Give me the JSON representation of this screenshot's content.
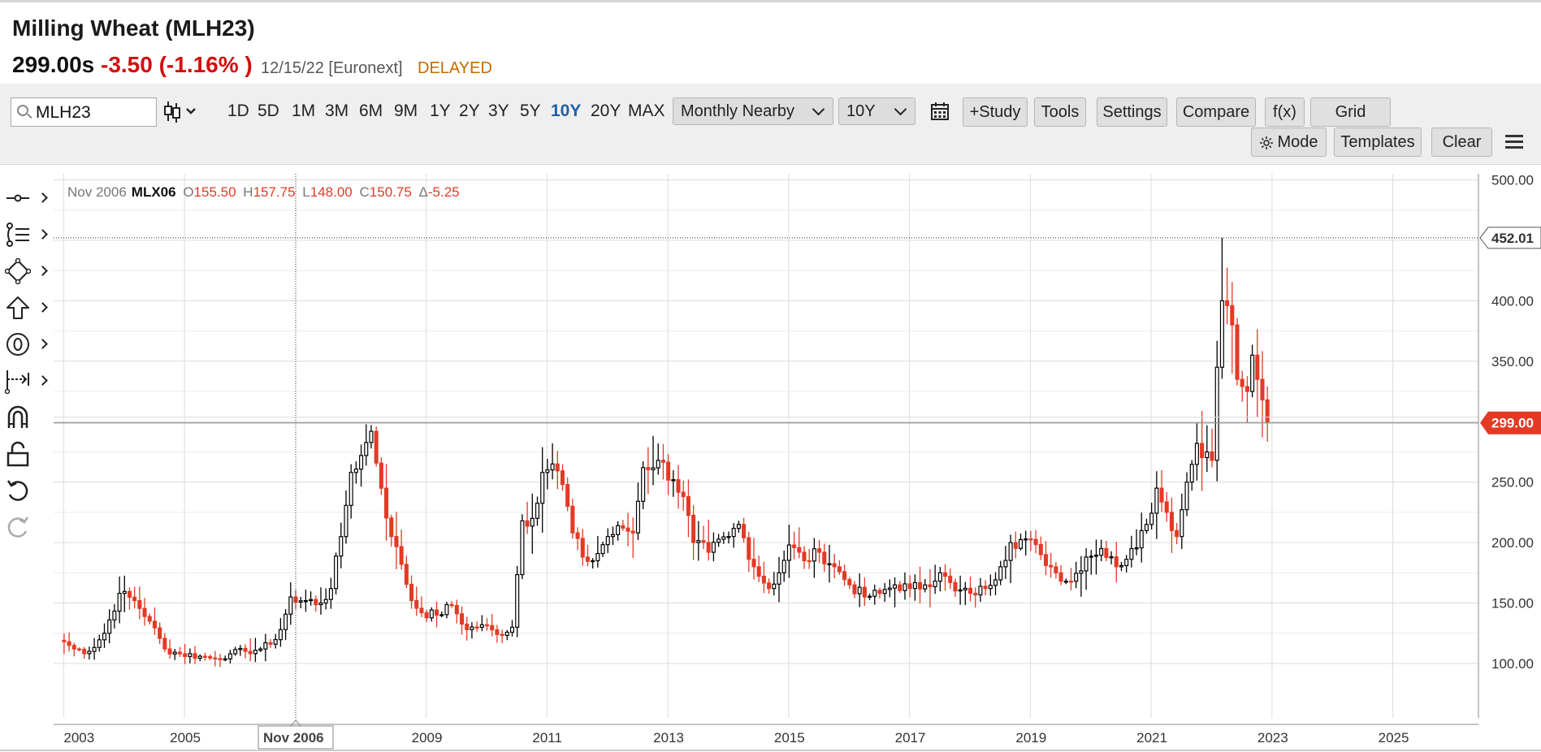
{
  "quote": {
    "title": "Milling Wheat (MLH23)",
    "price": "299.00s",
    "change": "-3.50 (-1.16% )",
    "datetime": "12/15/22 [Euronext]",
    "status": "DELAYED",
    "colors": {
      "down": "#d40e0e",
      "delayed": "#c56a00"
    }
  },
  "toolbar": {
    "search_value": "MLH23",
    "periods": [
      {
        "label": "1D"
      },
      {
        "label": "5D"
      },
      {
        "label": "1M"
      },
      {
        "label": "3M"
      },
      {
        "label": "6M"
      },
      {
        "label": "9M"
      },
      {
        "label": "1Y"
      },
      {
        "label": "2Y"
      },
      {
        "label": "3Y"
      },
      {
        "label": "5Y"
      },
      {
        "label": "10Y"
      },
      {
        "label": "20Y"
      },
      {
        "label": "MAX"
      }
    ],
    "active_period": "10Y",
    "aggregation": "Monthly Nearby",
    "range": "10Y",
    "study": "+Study",
    "tools": "Tools",
    "settings": "Settings",
    "compare": "Compare",
    "fx": "f(x)",
    "grid": "Grid",
    "mode": "Mode",
    "templates": "Templates",
    "clear": "Clear",
    "icons": [
      "search-icon",
      "candlestick-icon",
      "calendar-icon",
      "sun-icon",
      "hamburger-menu-icon"
    ]
  },
  "drawing_tools": [
    "line-tool-icon",
    "fib-tool-icon",
    "shape-tool-icon",
    "arrow-tool-icon",
    "annotation-tool-icon",
    "measure-tool-icon",
    "magnet-icon",
    "lock-icon",
    "undo-icon",
    "redo-icon"
  ],
  "crosshair": {
    "date_label": "Nov 2006",
    "ohlc": {
      "period": "Nov 2006",
      "symbol": "MLX06",
      "o": "155.50",
      "h": "157.75",
      "l": "148.00",
      "c": "150.75",
      "delta": "-5.25"
    },
    "price_label": "452.01",
    "price": 452.01
  },
  "chart_data": {
    "type": "candlestick",
    "interval": "monthly",
    "x_range": [
      "2002-11",
      "2026-06"
    ],
    "ylim": [
      55,
      505
    ],
    "y_ticks": [
      100,
      150,
      200,
      250,
      300,
      350,
      400,
      450,
      500
    ],
    "y_tick_labels": [
      "100.00",
      "150.00",
      "200.00",
      "250.00",
      "",
      "350.00",
      "400.00",
      "",
      "500.00"
    ],
    "x_ticks": [
      "2003",
      "2005",
      "2009",
      "2011",
      "2013",
      "2015",
      "2017",
      "2019",
      "2021",
      "2023",
      "2025"
    ],
    "last_price": 299.0,
    "last_price_label": "299.00",
    "colors": {
      "up": "#000000",
      "down": "#e33a25",
      "last_price_tag": "#e33a25",
      "grid": "#dcdcdc"
    },
    "grid": true,
    "series": [
      {
        "name": "MLH23",
        "monthly_close_anchors": [
          [
            "2003-01",
            118
          ],
          [
            "2003-03",
            112
          ],
          [
            "2003-06",
            110
          ],
          [
            "2003-09",
            125
          ],
          [
            "2003-12",
            158
          ],
          [
            "2004-03",
            152
          ],
          [
            "2004-06",
            135
          ],
          [
            "2004-09",
            112
          ],
          [
            "2004-12",
            108
          ],
          [
            "2005-04",
            106
          ],
          [
            "2005-07",
            104
          ],
          [
            "2005-10",
            108
          ],
          [
            "2006-01",
            110
          ],
          [
            "2006-04",
            112
          ],
          [
            "2006-06",
            116
          ],
          [
            "2006-08",
            128
          ],
          [
            "2006-10",
            155
          ],
          [
            "2006-11",
            150.75
          ],
          [
            "2007-01",
            152
          ],
          [
            "2007-04",
            150
          ],
          [
            "2007-06",
            162
          ],
          [
            "2007-08",
            205
          ],
          [
            "2007-10",
            258
          ],
          [
            "2007-12",
            272
          ],
          [
            "2008-02",
            292
          ],
          [
            "2008-04",
            245
          ],
          [
            "2008-06",
            205
          ],
          [
            "2008-08",
            182
          ],
          [
            "2008-10",
            152
          ],
          [
            "2008-12",
            142
          ],
          [
            "2009-03",
            140
          ],
          [
            "2009-06",
            148
          ],
          [
            "2009-09",
            128
          ],
          [
            "2009-12",
            132
          ],
          [
            "2010-03",
            124
          ],
          [
            "2010-06",
            130
          ],
          [
            "2010-08",
            218
          ],
          [
            "2010-10",
            220
          ],
          [
            "2010-12",
            258
          ],
          [
            "2011-02",
            265
          ],
          [
            "2011-04",
            248
          ],
          [
            "2011-06",
            208
          ],
          [
            "2011-08",
            188
          ],
          [
            "2011-10",
            185
          ],
          [
            "2012-01",
            205
          ],
          [
            "2012-04",
            212
          ],
          [
            "2012-06",
            208
          ],
          [
            "2012-08",
            262
          ],
          [
            "2012-11",
            268
          ],
          [
            "2013-02",
            252
          ],
          [
            "2013-04",
            238
          ],
          [
            "2013-06",
            200
          ],
          [
            "2013-09",
            192
          ],
          [
            "2014-01",
            205
          ],
          [
            "2014-03",
            215
          ],
          [
            "2014-06",
            180
          ],
          [
            "2014-09",
            162
          ],
          [
            "2014-11",
            175
          ],
          [
            "2015-01",
            198
          ],
          [
            "2015-04",
            185
          ],
          [
            "2015-07",
            192
          ],
          [
            "2015-10",
            180
          ],
          [
            "2016-01",
            165
          ],
          [
            "2016-04",
            155
          ],
          [
            "2016-07",
            158
          ],
          [
            "2016-10",
            165
          ],
          [
            "2017-01",
            162
          ],
          [
            "2017-04",
            165
          ],
          [
            "2017-07",
            175
          ],
          [
            "2017-10",
            160
          ],
          [
            "2018-01",
            158
          ],
          [
            "2018-04",
            162
          ],
          [
            "2018-07",
            180
          ],
          [
            "2018-09",
            200
          ],
          [
            "2018-12",
            203
          ],
          [
            "2019-03",
            190
          ],
          [
            "2019-06",
            175
          ],
          [
            "2019-09",
            168
          ],
          [
            "2019-12",
            188
          ],
          [
            "2020-03",
            195
          ],
          [
            "2020-06",
            180
          ],
          [
            "2020-09",
            195
          ],
          [
            "2020-12",
            215
          ],
          [
            "2021-02",
            245
          ],
          [
            "2021-04",
            225
          ],
          [
            "2021-06",
            205
          ],
          [
            "2021-08",
            250
          ],
          [
            "2021-10",
            282
          ],
          [
            "2021-12",
            275
          ],
          [
            "2022-01",
            268
          ],
          [
            "2022-02",
            345
          ],
          [
            "2022-03",
            400
          ],
          [
            "2022-05",
            380
          ],
          [
            "2022-06",
            335
          ],
          [
            "2022-08",
            325
          ],
          [
            "2022-09",
            355
          ],
          [
            "2022-10",
            335
          ],
          [
            "2022-11",
            318
          ],
          [
            "2022-12",
            299
          ]
        ],
        "notable_highs": [
          [
            "2008-03",
            296
          ],
          [
            "2011-02",
            282
          ],
          [
            "2012-11",
            282
          ],
          [
            "2022-03",
            452.01
          ]
        ]
      }
    ]
  }
}
